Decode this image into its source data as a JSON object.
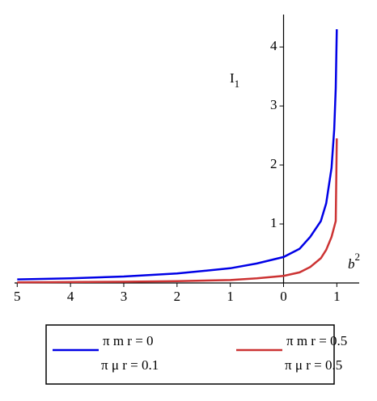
{
  "chart_data": {
    "type": "line",
    "xlabel": {
      "text": "b",
      "sup": "2"
    },
    "ylabel": {
      "text": "I",
      "sub": "1"
    },
    "x": [
      5,
      4,
      3,
      2,
      1,
      0.5,
      0,
      -0.3,
      -0.5,
      -0.7,
      -0.8,
      -0.9,
      -0.95,
      -0.98,
      -1
    ],
    "series": [
      {
        "name": [
          "π m r = 0",
          "π μ r = 0.1"
        ],
        "color": "#0000e6",
        "values": [
          0.06,
          0.08,
          0.11,
          0.16,
          0.25,
          0.33,
          0.44,
          0.58,
          0.78,
          1.05,
          1.35,
          1.95,
          2.6,
          3.3,
          4.3
        ]
      },
      {
        "name": [
          "π m r = 0.5",
          "π μ r = 0.5"
        ],
        "color": "#cc3333",
        "values": [
          0.01,
          0.015,
          0.02,
          0.03,
          0.05,
          0.08,
          0.12,
          0.18,
          0.27,
          0.42,
          0.56,
          0.78,
          0.95,
          1.05,
          2.45
        ]
      }
    ],
    "xlim": [
      5.05,
      -1.42
    ],
    "ylim": [
      0,
      4.55
    ],
    "xticks": [
      5,
      4,
      3,
      2,
      1,
      0,
      {
        "value": -1,
        "label": "1"
      }
    ],
    "yticks": [
      1,
      2,
      3,
      4
    ]
  }
}
